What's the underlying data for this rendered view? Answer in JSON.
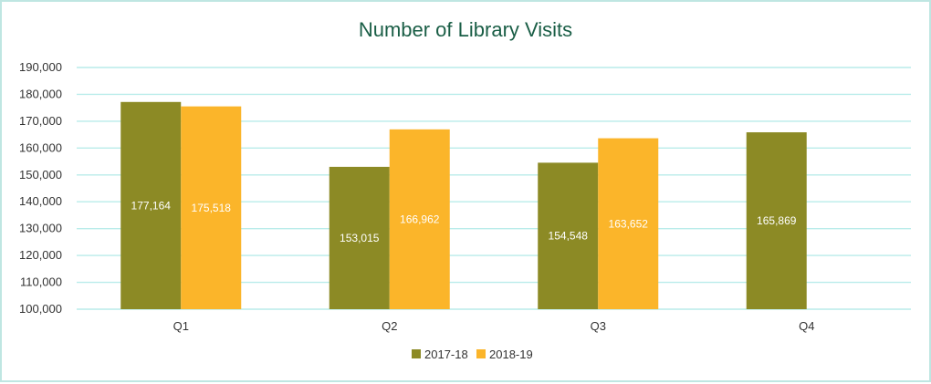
{
  "chart_data": {
    "type": "bar",
    "title": "Number of Library Visits",
    "categories": [
      "Q1",
      "Q2",
      "Q3",
      "Q4"
    ],
    "series": [
      {
        "name": "2017-18",
        "color": "#8c8a25",
        "values": [
          177164,
          153015,
          154548,
          165869
        ],
        "labels": [
          "177,164",
          "153,015",
          "154,548",
          "165,869"
        ]
      },
      {
        "name": "2018-19",
        "color": "#fbb52a",
        "values": [
          175518,
          166962,
          163652,
          null
        ],
        "labels": [
          "175,518",
          "166,962",
          "163,652",
          ""
        ]
      }
    ],
    "ylim": [
      100000,
      190000
    ],
    "yticks": [
      100000,
      110000,
      120000,
      130000,
      140000,
      150000,
      160000,
      170000,
      180000,
      190000
    ],
    "ytick_labels": [
      "100,000",
      "110,000",
      "120,000",
      "130,000",
      "140,000",
      "150,000",
      "160,000",
      "170,000",
      "180,000",
      "190,000"
    ],
    "grid": true,
    "legend_position": "bottom"
  }
}
